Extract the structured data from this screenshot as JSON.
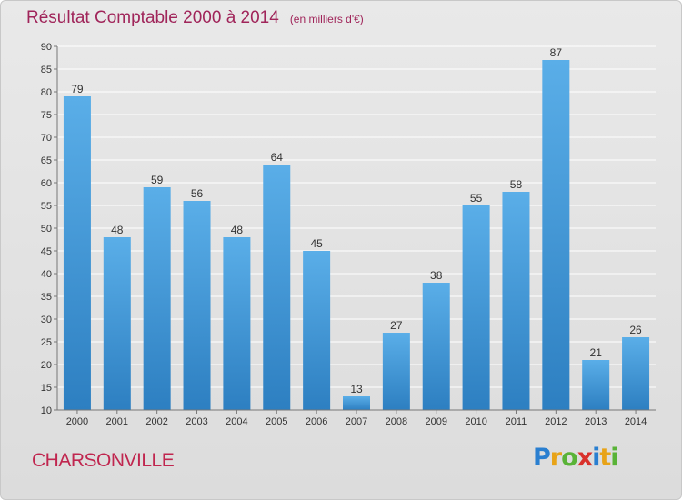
{
  "title": "Résultat Comptable 2000 à 2014",
  "unit_note": "(en milliers d'€)",
  "commune": "CHARSONVILLE",
  "logo": {
    "letters": [
      "P",
      "r",
      "o",
      "x",
      "i",
      "t",
      "i"
    ],
    "colors": [
      "#2a7fd0",
      "#e8a317",
      "#59b337",
      "#d9312b",
      "#2a7fd0",
      "#e8a317",
      "#59b337"
    ]
  },
  "colors": {
    "bar_light": "#5aaee8",
    "bar_dark": "#2d7fc1",
    "grid": "#ffffff",
    "axis": "#777777"
  },
  "chart_data": {
    "type": "bar",
    "title": "Résultat Comptable 2000 à 2014",
    "xlabel": "",
    "ylabel": "",
    "categories": [
      "2000",
      "2001",
      "2002",
      "2003",
      "2004",
      "2005",
      "2006",
      "2007",
      "2008",
      "2009",
      "2010",
      "2011",
      "2012",
      "2013",
      "2014"
    ],
    "values": [
      79,
      48,
      59,
      56,
      48,
      64,
      45,
      13,
      27,
      38,
      55,
      58,
      87,
      21,
      26
    ],
    "ylim": [
      10,
      90
    ],
    "yticks": [
      10,
      15,
      20,
      25,
      30,
      35,
      40,
      45,
      50,
      55,
      60,
      65,
      70,
      75,
      80,
      85,
      90
    ],
    "grid": true,
    "data_labels": true
  }
}
